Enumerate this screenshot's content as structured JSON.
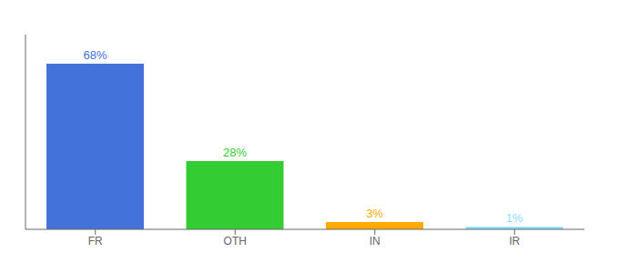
{
  "chart_data": {
    "type": "bar",
    "categories": [
      "FR",
      "OTH",
      "IN",
      "IR"
    ],
    "values": [
      68,
      28,
      3,
      1
    ],
    "value_labels": [
      "68%",
      "28%",
      "3%",
      "1%"
    ],
    "data_labels": true,
    "colors": [
      "#4472db",
      "#33cc33",
      "#ffaa00",
      "#88ddff"
    ],
    "ylim": [
      0,
      80
    ],
    "tick_labels": "x",
    "grid": false
  }
}
